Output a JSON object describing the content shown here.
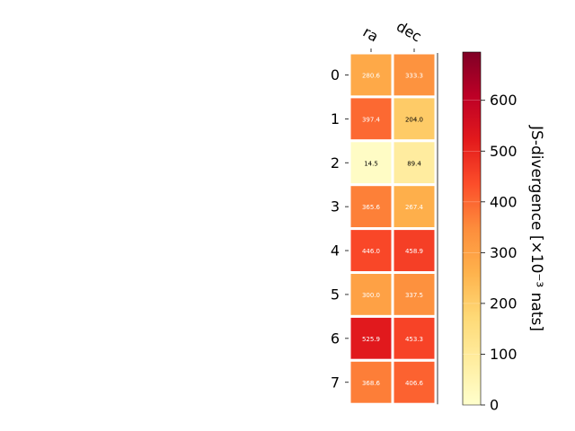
{
  "chart_data": {
    "type": "heatmap",
    "columns": [
      "ra",
      "dec"
    ],
    "rows": [
      "0",
      "1",
      "2",
      "3",
      "4",
      "5",
      "6",
      "7"
    ],
    "values": [
      [
        280.6,
        333.3
      ],
      [
        397.4,
        204.0
      ],
      [
        14.5,
        89.4
      ],
      [
        365.6,
        267.4
      ],
      [
        446.0,
        458.9
      ],
      [
        300.0,
        337.5
      ],
      [
        525.9,
        453.3
      ],
      [
        368.6,
        406.6
      ]
    ],
    "value_labels": [
      [
        "280.6",
        "333.3"
      ],
      [
        "397.4",
        "204.0"
      ],
      [
        "14.5",
        "89.4"
      ],
      [
        "365.6",
        "267.4"
      ],
      [
        "446.0",
        "458.9"
      ],
      [
        "300.0",
        "337.5"
      ],
      [
        "525.9",
        "453.3"
      ],
      [
        "368.6",
        "406.6"
      ]
    ],
    "colormap": "YlOrRd",
    "vmin": 0,
    "vmax": 695,
    "colorbar": {
      "label": "JS-divergence [×10⁻³ nats]",
      "ticks": [
        0,
        100,
        200,
        300,
        400,
        500,
        600
      ]
    },
    "colorscale": [
      "#ffffcc",
      "#ffeda0",
      "#fed976",
      "#feb24c",
      "#fd8d3c",
      "#fc4e2a",
      "#e31a1c",
      "#bd0026",
      "#800026"
    ],
    "title": ""
  }
}
